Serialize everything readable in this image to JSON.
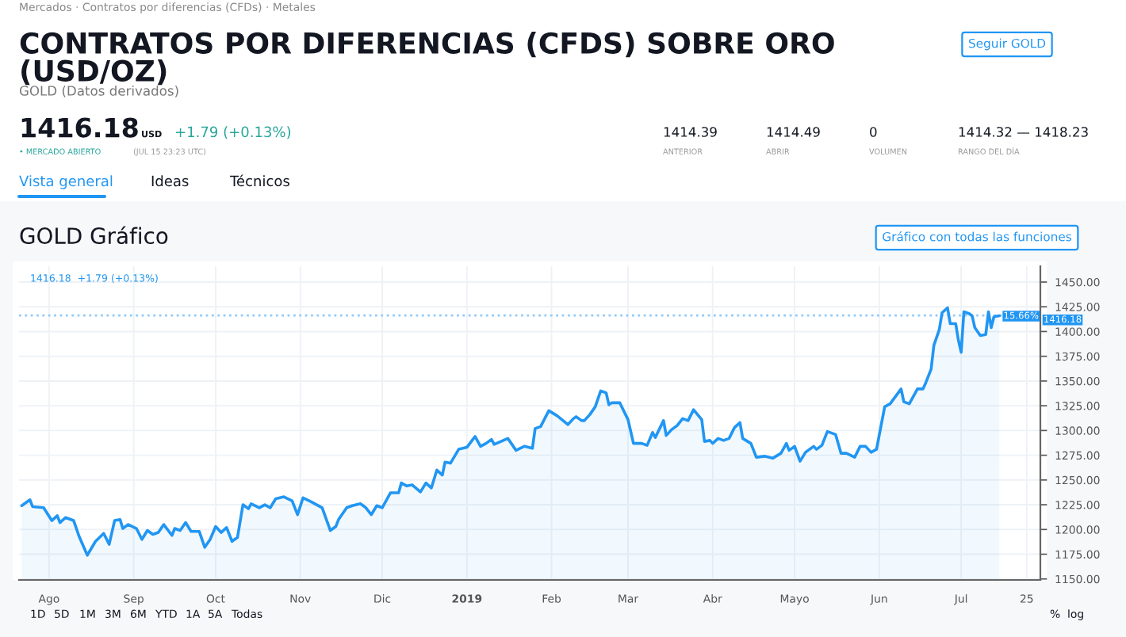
{
  "chart_data": {
    "type": "area",
    "title": "GOLD Gráfico",
    "x": [
      "2018-07-22",
      "2018-07-25",
      "2018-07-26",
      "2018-07-30",
      "2018-08-02",
      "2018-08-04",
      "2018-08-05",
      "2018-08-07",
      "2018-08-10",
      "2018-08-12",
      "2018-08-15",
      "2018-08-18",
      "2018-08-21",
      "2018-08-23",
      "2018-08-25",
      "2018-08-27",
      "2018-08-28",
      "2018-08-30",
      "2018-09-02",
      "2018-09-04",
      "2018-09-06",
      "2018-09-08",
      "2018-09-10",
      "2018-09-12",
      "2018-09-15",
      "2018-09-16",
      "2018-09-18",
      "2018-09-20",
      "2018-09-22",
      "2018-09-25",
      "2018-09-27",
      "2018-09-29",
      "2018-10-01",
      "2018-10-03",
      "2018-10-05",
      "2018-10-07",
      "2018-10-09",
      "2018-10-11",
      "2018-10-13",
      "2018-10-14",
      "2018-10-17",
      "2018-10-19",
      "2018-10-21",
      "2018-10-23",
      "2018-10-26",
      "2018-10-29",
      "2018-10-31",
      "2018-11-02",
      "2018-11-05",
      "2018-11-09",
      "2018-11-12",
      "2018-11-14",
      "2018-11-15",
      "2018-11-18",
      "2018-11-20",
      "2018-11-23",
      "2018-11-25",
      "2018-11-27",
      "2018-11-29",
      "2018-12-01",
      "2018-12-04",
      "2018-12-07",
      "2018-12-08",
      "2018-12-10",
      "2018-12-12",
      "2018-12-15",
      "2018-12-17",
      "2018-12-19",
      "2018-12-21",
      "2018-12-23",
      "2018-12-24",
      "2018-12-26",
      "2018-12-29",
      "2019-01-01",
      "2019-01-04",
      "2019-01-06",
      "2019-01-08",
      "2019-01-10",
      "2019-01-11",
      "2019-01-16",
      "2019-01-19",
      "2019-01-22",
      "2019-01-25",
      "2019-01-26",
      "2019-01-28",
      "2019-01-31",
      "2019-02-03",
      "2019-02-07",
      "2019-02-09",
      "2019-02-10",
      "2019-02-12",
      "2019-02-13",
      "2019-02-15",
      "2019-02-17",
      "2019-02-19",
      "2019-02-21",
      "2019-02-22",
      "2019-02-23",
      "2019-02-26",
      "2019-03-01",
      "2019-03-03",
      "2019-03-06",
      "2019-03-08",
      "2019-03-10",
      "2019-03-11",
      "2019-03-14",
      "2019-03-15",
      "2019-03-17",
      "2019-03-19",
      "2019-03-21",
      "2019-03-23",
      "2019-03-25",
      "2019-03-28",
      "2019-03-29",
      "2019-03-31",
      "2019-04-01",
      "2019-04-03",
      "2019-04-05",
      "2019-04-07",
      "2019-04-09",
      "2019-04-11",
      "2019-04-12",
      "2019-04-15",
      "2019-04-17",
      "2019-04-20",
      "2019-04-23",
      "2019-04-26",
      "2019-04-28",
      "2019-04-29",
      "2019-05-01",
      "2019-05-03",
      "2019-05-05",
      "2019-05-08",
      "2019-05-09",
      "2019-05-11",
      "2019-05-13",
      "2019-05-16",
      "2019-05-18",
      "2019-05-20",
      "2019-05-23",
      "2019-05-25",
      "2019-05-27",
      "2019-05-29",
      "2019-05-31",
      "2019-06-03",
      "2019-06-05",
      "2019-06-09",
      "2019-06-10",
      "2019-06-12",
      "2019-06-15",
      "2019-06-17",
      "2019-06-18",
      "2019-06-20",
      "2019-06-21",
      "2019-06-23",
      "2019-06-24",
      "2019-06-26",
      "2019-06-27",
      "2019-06-29",
      "2019-06-30",
      "2019-07-01",
      "2019-07-02",
      "2019-07-04",
      "2019-07-05",
      "2019-07-06",
      "2019-07-08",
      "2019-07-10",
      "2019-07-11",
      "2019-07-12",
      "2019-07-13",
      "2019-07-15"
    ],
    "series": [
      {
        "color": "#2196f3",
        "values": [
          1224,
          1230,
          1223,
          1222,
          1209,
          1214,
          1207,
          1212,
          1209,
          1193,
          1174,
          1188,
          1196,
          1185,
          1209,
          1210,
          1201,
          1205,
          1201,
          1190,
          1199,
          1195,
          1197,
          1205,
          1194,
          1201,
          1199,
          1207,
          1198,
          1198,
          1182,
          1190,
          1203,
          1197,
          1202,
          1188,
          1192,
          1225,
          1221,
          1226,
          1222,
          1225,
          1222,
          1231,
          1233,
          1229,
          1215,
          1232,
          1228,
          1222,
          1199,
          1203,
          1210,
          1222,
          1224,
          1226,
          1222,
          1215,
          1224,
          1222,
          1237,
          1237,
          1247,
          1244,
          1245,
          1238,
          1247,
          1242,
          1260,
          1255,
          1268,
          1267,
          1281,
          1283,
          1294,
          1284,
          1287,
          1291,
          1286,
          1292,
          1280,
          1284,
          1282,
          1302,
          1304,
          1320,
          1315,
          1306,
          1312,
          1314,
          1310,
          1310,
          1316,
          1324,
          1340,
          1338,
          1326,
          1328,
          1328,
          1311,
          1287,
          1287,
          1285,
          1298,
          1293,
          1310,
          1295,
          1301,
          1305,
          1312,
          1310,
          1321,
          1311,
          1289,
          1290,
          1287,
          1292,
          1290,
          1292,
          1303,
          1308,
          1292,
          1287,
          1273,
          1274,
          1272,
          1277,
          1287,
          1280,
          1284,
          1269,
          1278,
          1284,
          1281,
          1285,
          1299,
          1296,
          1277,
          1277,
          1273,
          1284,
          1284,
          1278,
          1281,
          1324,
          1327,
          1342,
          1329,
          1327,
          1342,
          1342,
          1348,
          1362,
          1386,
          1402,
          1419,
          1424,
          1408,
          1408,
          1391,
          1379,
          1420,
          1418,
          1416,
          1404,
          1396,
          1397,
          1420,
          1404,
          1415,
          1416
        ]
      }
    ],
    "xlim": [
      "2018-07-21",
      "2019-07-30"
    ],
    "xticks": [
      {
        "value": "2018-08-01",
        "label": "Ago"
      },
      {
        "value": "2018-09-01",
        "label": "Sep"
      },
      {
        "value": "2018-10-01",
        "label": "Oct"
      },
      {
        "value": "2018-11-01",
        "label": "Nov"
      },
      {
        "value": "2018-12-01",
        "label": "Dic"
      },
      {
        "value": "2019-01-01",
        "label": "2019"
      },
      {
        "value": "2019-02-01",
        "label": "Feb"
      },
      {
        "value": "2019-03-01",
        "label": "Mar"
      },
      {
        "value": "2019-04-01",
        "label": "Abr"
      },
      {
        "value": "2019-05-01",
        "label": "Mayo"
      },
      {
        "value": "2019-06-01",
        "label": "Jun"
      },
      {
        "value": "2019-07-01",
        "label": "Jul"
      },
      {
        "value": "2019-07-25",
        "label": "25"
      }
    ],
    "ylim": [
      1149,
      1466
    ],
    "yticks": [
      {
        "value": 1150,
        "label": "1150.00"
      },
      {
        "value": 1175,
        "label": "1175.00"
      },
      {
        "value": 1200,
        "label": "1200.00"
      },
      {
        "value": 1225,
        "label": "1225.00"
      },
      {
        "value": 1250,
        "label": "1250.00"
      },
      {
        "value": 1275,
        "label": "1275.00"
      },
      {
        "value": 1300,
        "label": "1300.00"
      },
      {
        "value": 1325,
        "label": "1325.00"
      },
      {
        "value": 1350,
        "label": "1350.00"
      },
      {
        "value": 1375,
        "label": "1375.00"
      },
      {
        "value": 1400,
        "label": "1400.00"
      },
      {
        "value": 1425,
        "label": "1425.00"
      },
      {
        "value": 1450,
        "label": "1450.00"
      }
    ],
    "grid": true,
    "ref_lines": [
      {
        "axis": "y",
        "value": 1416.18,
        "label": "1416.18",
        "color": "#90caf9",
        "line_style": "dotted"
      }
    ],
    "annotations": [
      "Mercados · Contratos por diferencias (CFDs) · Metales",
      "CONTRATOS POR DIFERENCIAS (CFDS) SOBRE ORO\n(USD/OZ)",
      "GOLD (Datos derivados)",
      "Seguir GOLD",
      "1416.18",
      "USD",
      "+1.79 (+0.13%)",
      "• MERCADO ABIERTO",
      "(JUL 15 23:23 UTC)",
      "1414.39",
      "ANTERIOR",
      "1414.49",
      "ABRIR",
      "0",
      "VOLUMEN",
      "1414.32 — 1418.23",
      "RANGO DEL DÍA",
      "Vista general",
      "Ideas",
      "Técnicos",
      "Gráfico con todas las funciones",
      "1416.18  +1.79 (+0.13%)",
      "15.66%",
      "1D",
      "5D",
      "1M",
      "3M",
      "6M",
      "YTD",
      "1A",
      "5A",
      "Todas",
      "%",
      "log"
    ]
  }
}
